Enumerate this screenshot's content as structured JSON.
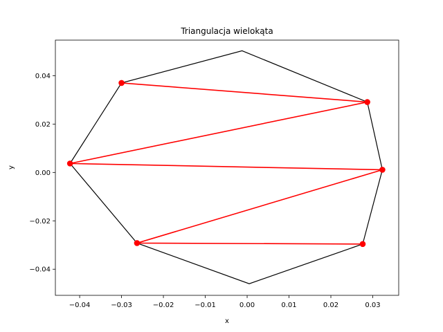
{
  "chart_data": {
    "type": "line",
    "title": "Triangulacja wielokąta",
    "xlabel": "x",
    "ylabel": "y",
    "xlim": [
      -0.0458,
      0.0362
    ],
    "ylim": [
      -0.0508,
      0.0547
    ],
    "grid": false,
    "xticks": [
      -0.04,
      -0.03,
      -0.02,
      -0.01,
      0.0,
      0.01,
      0.02,
      0.03
    ],
    "xtick_labels": [
      "−0.04",
      "−0.03",
      "−0.02",
      "−0.01",
      "0.00",
      "0.01",
      "0.02",
      "0.03"
    ],
    "yticks": [
      -0.04,
      -0.02,
      0.0,
      0.02,
      0.04
    ],
    "ytick_labels": [
      "−0.04",
      "−0.02",
      "0.00",
      "0.02",
      "0.04"
    ],
    "polygon": {
      "color": "#000000",
      "x": [
        -0.0012,
        0.0287,
        0.0323,
        0.0276,
        0.0005,
        -0.0263,
        -0.0423,
        -0.03
      ],
      "y": [
        0.0503,
        0.0291,
        0.0011,
        -0.0296,
        -0.046,
        -0.0292,
        0.0037,
        0.037
      ]
    },
    "triangulation": {
      "color": "#ff0000",
      "x": [
        -0.03,
        0.0287,
        -0.0423,
        0.0323,
        -0.0263,
        0.0276
      ],
      "y": [
        0.037,
        0.0291,
        0.0037,
        0.0011,
        -0.0292,
        -0.0296
      ]
    }
  }
}
